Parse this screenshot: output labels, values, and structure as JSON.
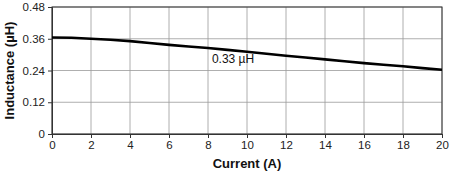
{
  "chart_data": {
    "type": "line",
    "x_label": "Current (A)",
    "y_label": "Inductance (µH)",
    "annotation": "0.33 µH",
    "x": [
      0,
      1,
      2,
      3,
      4,
      5,
      6,
      7,
      8,
      9,
      10,
      11,
      12,
      13,
      14,
      15,
      16,
      17,
      18,
      19,
      20
    ],
    "values": [
      0.365,
      0.364,
      0.36,
      0.356,
      0.351,
      0.344,
      0.337,
      0.331,
      0.325,
      0.318,
      0.311,
      0.303,
      0.296,
      0.289,
      0.282,
      0.275,
      0.268,
      0.262,
      0.256,
      0.249,
      0.243
    ],
    "color": "#000000",
    "xlim": [
      0,
      20
    ],
    "xticks": [
      0,
      2,
      4,
      6,
      8,
      10,
      12,
      14,
      16,
      18,
      20
    ],
    "ylim": [
      0,
      0.48
    ],
    "yticks": [
      0,
      0.12,
      0.24,
      0.36,
      0.48
    ],
    "grid": true
  }
}
